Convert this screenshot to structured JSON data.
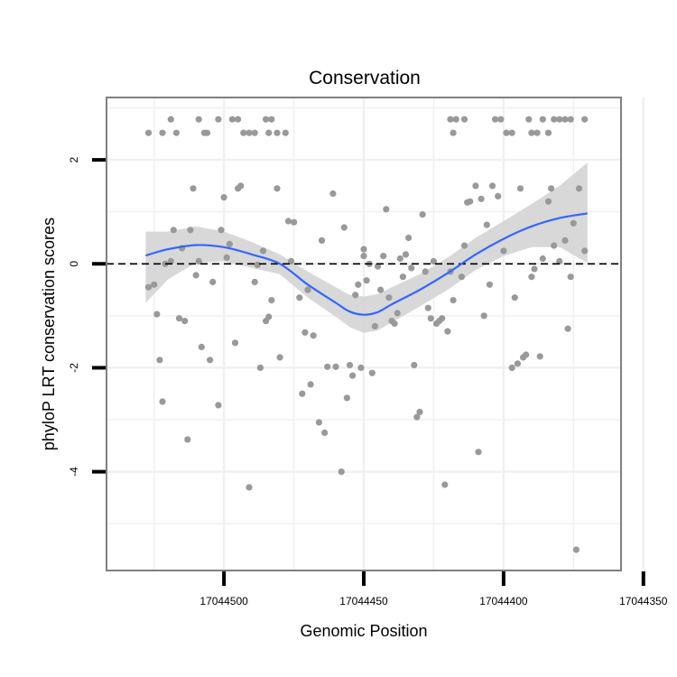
{
  "chart_data": {
    "type": "scatter",
    "title": "Conservation",
    "xlabel": "Genomic Position",
    "ylabel": "phyloP LRT conservation scores",
    "x_reversed": true,
    "xlim": [
      17044358,
      17044542
    ],
    "ylim": [
      -5.9,
      3.2
    ],
    "x_ticks": [
      17044500,
      17044450,
      17044400,
      17044350
    ],
    "x_tick_labels": [
      "17044500",
      "17044450",
      "17044400",
      "17044350"
    ],
    "y_ticks": [
      2,
      0,
      -2,
      -4
    ],
    "y_tick_labels": [
      "2",
      "0",
      "-2",
      "-4"
    ],
    "grid": true,
    "reference_line": {
      "y": 0,
      "style": "dashed"
    },
    "colors": {
      "points": "#999999",
      "smooth": "#3366ff",
      "ribbon": "#d4d4d4",
      "panel_border": "#808080",
      "grid": "#f0f0f0"
    },
    "points": [
      [
        17044527,
        -0.45
      ],
      [
        17044525,
        -0.4
      ],
      [
        17044524,
        -0.97
      ],
      [
        17044523,
        -1.85
      ],
      [
        17044522,
        -2.65
      ],
      [
        17044521,
        0.0
      ],
      [
        17044519,
        0.05
      ],
      [
        17044518,
        0.65
      ],
      [
        17044516,
        -1.05
      ],
      [
        17044515,
        0.3
      ],
      [
        17044514,
        -1.1
      ],
      [
        17044513,
        -3.38
      ],
      [
        17044512,
        0.65
      ],
      [
        17044511,
        1.45
      ],
      [
        17044510,
        -0.22
      ],
      [
        17044509,
        0.05
      ],
      [
        17044508,
        -1.6
      ],
      [
        17044505,
        -1.85
      ],
      [
        17044504,
        -0.35
      ],
      [
        17044502,
        -2.72
      ],
      [
        17044501,
        0.65
      ],
      [
        17044500,
        1.28
      ],
      [
        17044499,
        0.12
      ],
      [
        17044498,
        0.38
      ],
      [
        17044496,
        -1.52
      ],
      [
        17044495,
        1.45
      ],
      [
        17044494,
        1.5
      ],
      [
        17044491,
        -4.3
      ],
      [
        17044489,
        -0.35
      ],
      [
        17044488,
        -0.02
      ],
      [
        17044487,
        -2.0
      ],
      [
        17044486,
        0.25
      ],
      [
        17044485,
        -1.1
      ],
      [
        17044484,
        -1.02
      ],
      [
        17044483,
        -0.7
      ],
      [
        17044481,
        1.45
      ],
      [
        17044480,
        -1.8
      ],
      [
        17044477,
        0.82
      ],
      [
        17044476,
        0.05
      ],
      [
        17044475,
        0.8
      ],
      [
        17044473,
        -0.65
      ],
      [
        17044472,
        -2.5
      ],
      [
        17044471,
        -1.32
      ],
      [
        17044470,
        -0.5
      ],
      [
        17044469,
        -2.32
      ],
      [
        17044468,
        -1.38
      ],
      [
        17044466,
        -3.05
      ],
      [
        17044465,
        0.45
      ],
      [
        17044464,
        -3.25
      ],
      [
        17044463,
        -1.98
      ],
      [
        17044461,
        1.35
      ],
      [
        17044460,
        -1.98
      ],
      [
        17044458,
        -4.0
      ],
      [
        17044457,
        0.7
      ],
      [
        17044456,
        -2.58
      ],
      [
        17044455,
        -1.95
      ],
      [
        17044454,
        -2.15
      ],
      [
        17044453,
        -0.6
      ],
      [
        17044452,
        -0.4
      ],
      [
        17044451,
        -2.0
      ],
      [
        17044450,
        0.15
      ],
      [
        17044450,
        0.28
      ],
      [
        17044449,
        -0.32
      ],
      [
        17044448,
        0.0
      ],
      [
        17044447,
        -2.1
      ],
      [
        17044446,
        -1.2
      ],
      [
        17044445,
        -0.05
      ],
      [
        17044444,
        -0.5
      ],
      [
        17044443,
        0.15
      ],
      [
        17044442,
        1.05
      ],
      [
        17044441,
        -0.65
      ],
      [
        17044440,
        -1.1
      ],
      [
        17044439,
        -1.15
      ],
      [
        17044438,
        -0.95
      ],
      [
        17044437,
        0.1
      ],
      [
        17044436,
        -0.25
      ],
      [
        17044435,
        0.18
      ],
      [
        17044434,
        0.5
      ],
      [
        17044433,
        -0.08
      ],
      [
        17044432,
        -1.95
      ],
      [
        17044431,
        -2.95
      ],
      [
        17044430,
        -2.85
      ],
      [
        17044429,
        0.95
      ],
      [
        17044428,
        -0.15
      ],
      [
        17044427,
        -0.85
      ],
      [
        17044426,
        -1.05
      ],
      [
        17044425,
        0.05
      ],
      [
        17044424,
        -1.15
      ],
      [
        17044423,
        -1.1
      ],
      [
        17044422,
        -1.05
      ],
      [
        17044421,
        -4.25
      ],
      [
        17044420,
        -1.3
      ],
      [
        17044419,
        -0.15
      ],
      [
        17044418,
        -0.7
      ],
      [
        17044415,
        -0.25
      ],
      [
        17044414,
        0.35
      ],
      [
        17044413,
        1.18
      ],
      [
        17044412,
        1.2
      ],
      [
        17044410,
        1.5
      ],
      [
        17044409,
        -3.62
      ],
      [
        17044408,
        1.25
      ],
      [
        17044407,
        -1.0
      ],
      [
        17044406,
        0.75
      ],
      [
        17044405,
        -0.4
      ],
      [
        17044404,
        1.5
      ],
      [
        17044402,
        1.3
      ],
      [
        17044400,
        0.25
      ],
      [
        17044397,
        -2.0
      ],
      [
        17044396,
        -0.65
      ],
      [
        17044395,
        -1.92
      ],
      [
        17044394,
        1.45
      ],
      [
        17044393,
        -1.8
      ],
      [
        17044392,
        -1.75
      ],
      [
        17044390,
        -0.25
      ],
      [
        17044389,
        -0.1
      ],
      [
        17044387,
        -1.78
      ],
      [
        17044386,
        0.1
      ],
      [
        17044384,
        1.2
      ],
      [
        17044383,
        1.45
      ],
      [
        17044382,
        0.35
      ],
      [
        17044380,
        0.05
      ],
      [
        17044378,
        0.45
      ],
      [
        17044377,
        -1.25
      ],
      [
        17044376,
        -0.25
      ],
      [
        17044375,
        0.78
      ],
      [
        17044374,
        -5.5
      ],
      [
        17044373,
        1.45
      ],
      [
        17044371,
        0.25
      ],
      [
        17044527,
        2.52
      ],
      [
        17044522,
        2.52
      ],
      [
        17044519,
        2.78
      ],
      [
        17044517,
        2.52
      ],
      [
        17044509,
        2.78
      ],
      [
        17044507,
        2.52
      ],
      [
        17044506,
        2.52
      ],
      [
        17044502,
        2.78
      ],
      [
        17044497,
        2.78
      ],
      [
        17044495,
        2.78
      ],
      [
        17044493,
        2.52
      ],
      [
        17044491,
        2.52
      ],
      [
        17044489,
        2.52
      ],
      [
        17044485,
        2.78
      ],
      [
        17044484,
        2.52
      ],
      [
        17044483,
        2.78
      ],
      [
        17044481,
        2.52
      ],
      [
        17044478,
        2.52
      ],
      [
        17044419,
        2.78
      ],
      [
        17044418,
        2.52
      ],
      [
        17044417,
        2.78
      ],
      [
        17044414,
        2.78
      ],
      [
        17044403,
        2.78
      ],
      [
        17044401,
        2.78
      ],
      [
        17044399,
        2.52
      ],
      [
        17044397,
        2.52
      ],
      [
        17044391,
        2.78
      ],
      [
        17044390,
        2.52
      ],
      [
        17044388,
        2.52
      ],
      [
        17044386,
        2.78
      ],
      [
        17044384,
        2.52
      ],
      [
        17044382,
        2.78
      ],
      [
        17044380,
        2.78
      ],
      [
        17044378,
        2.78
      ],
      [
        17044376,
        2.78
      ],
      [
        17044371,
        2.78
      ]
    ],
    "smooth": [
      [
        17044528,
        0.16
      ],
      [
        17044520,
        0.28
      ],
      [
        17044510,
        0.36
      ],
      [
        17044500,
        0.32
      ],
      [
        17044490,
        0.18
      ],
      [
        17044480,
        0.0
      ],
      [
        17044470,
        -0.4
      ],
      [
        17044460,
        -0.75
      ],
      [
        17044455,
        -0.92
      ],
      [
        17044450,
        -0.98
      ],
      [
        17044445,
        -0.93
      ],
      [
        17044440,
        -0.78
      ],
      [
        17044430,
        -0.5
      ],
      [
        17044420,
        -0.18
      ],
      [
        17044410,
        0.18
      ],
      [
        17044400,
        0.48
      ],
      [
        17044390,
        0.72
      ],
      [
        17044380,
        0.88
      ],
      [
        17044370,
        0.97
      ]
    ],
    "ribbon_upper": [
      0.62,
      0.62,
      0.72,
      0.62,
      0.42,
      0.18,
      -0.15,
      -0.45,
      -0.6,
      -0.63,
      -0.58,
      -0.45,
      -0.2,
      0.12,
      0.5,
      0.82,
      1.15,
      1.5,
      1.95
    ],
    "ribbon_lower": [
      -0.75,
      -0.3,
      0.02,
      0.05,
      -0.08,
      -0.2,
      -0.65,
      -1.02,
      -1.22,
      -1.33,
      -1.28,
      -1.13,
      -0.82,
      -0.5,
      -0.12,
      0.15,
      0.32,
      0.32,
      0.02
    ]
  }
}
